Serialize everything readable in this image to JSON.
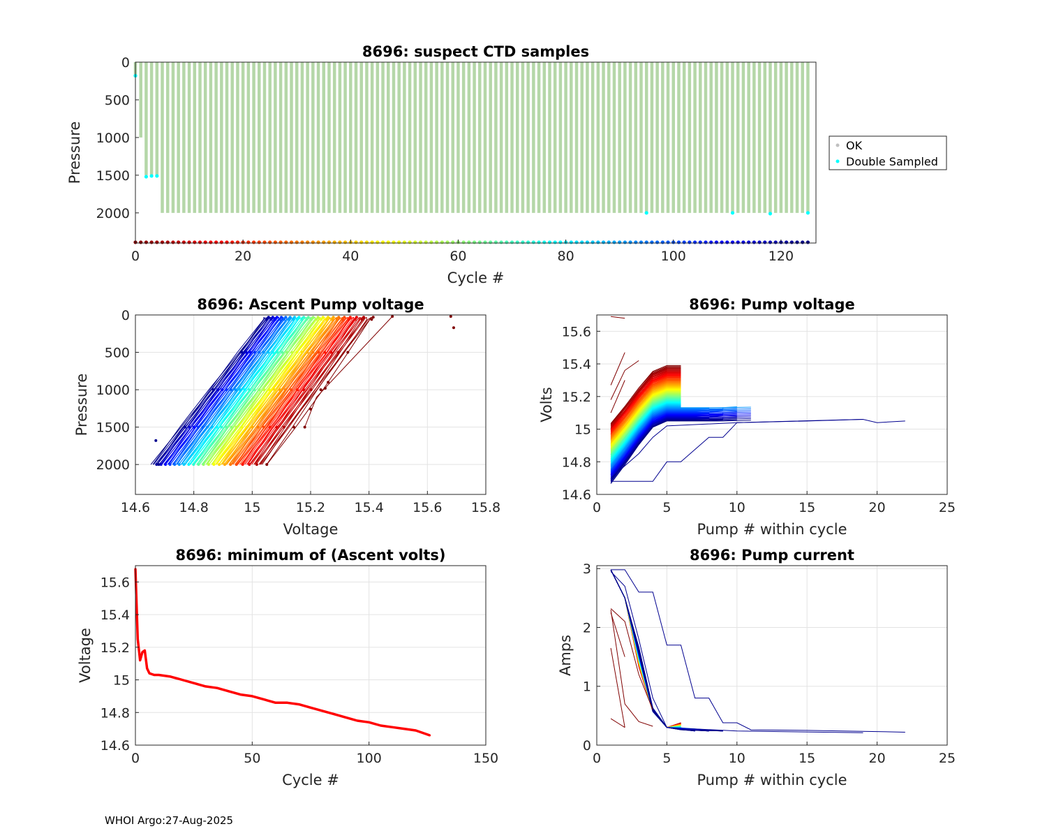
{
  "footer": "WHOI Argo:27-Aug-2025",
  "colors": {
    "ok": "#c0c0c0",
    "double": "#00ffff",
    "profile_bar": "#b5d7a8",
    "min_line": "#ff0000"
  },
  "chart_data": [
    {
      "id": "suspect",
      "type": "scatter",
      "title": "8696: suspect CTD samples",
      "xlabel": "Cycle #",
      "ylabel": "Pressure",
      "xlim": [
        0,
        126.5
      ],
      "ylim": [
        0,
        2400
      ],
      "y_reversed": true,
      "xticks": [
        0,
        20,
        40,
        60,
        80,
        100,
        120
      ],
      "yticks": [
        0,
        500,
        1000,
        1500,
        2000
      ],
      "cycles": 126,
      "max_pressure_by_cycle": {
        "0": 200,
        "1": 1000,
        "2": 1500,
        "3": 1500,
        "4": 1500,
        "default": 2000
      },
      "double_sampled": [
        [
          0,
          180
        ],
        [
          2,
          1520
        ],
        [
          3,
          1510
        ],
        [
          4,
          1510
        ],
        [
          95,
          2000
        ],
        [
          111,
          2000
        ],
        [
          118,
          2010
        ],
        [
          125,
          2000
        ]
      ],
      "cycle_marker_pressure": 2390,
      "legend": [
        "OK",
        "Double Sampled"
      ]
    },
    {
      "id": "ascent",
      "type": "line",
      "title": "8696: Ascent Pump voltage",
      "xlabel": "Voltage",
      "ylabel": "Pressure",
      "xlim": [
        14.6,
        15.8
      ],
      "ylim": [
        0,
        2400
      ],
      "y_reversed": true,
      "xticks": [
        14.6,
        14.8,
        15,
        15.2,
        15.4,
        15.6,
        15.8
      ],
      "yticks": [
        0,
        500,
        1000,
        1500,
        2000
      ],
      "voltage_at_2000dbar_first": 15.05,
      "voltage_at_2000dbar_last": 14.66,
      "voltage_at_surface_first": 15.42,
      "voltage_at_surface_last": 15.05
    },
    {
      "id": "pumpv",
      "type": "line",
      "title": "8696: Pump voltage",
      "xlabel": "Pump # within cycle",
      "ylabel": "Volts",
      "xlim": [
        0,
        25
      ],
      "ylim": [
        14.6,
        15.7
      ],
      "xticks": [
        0,
        5,
        10,
        15,
        20,
        25
      ],
      "yticks": [
        14.6,
        14.8,
        15,
        15.2,
        15.4,
        15.6
      ],
      "start_volts_first": 15.03,
      "start_volts_last": 14.67,
      "end_volts_first": 15.39,
      "end_volts_last": 15.05
    },
    {
      "id": "minv",
      "type": "line",
      "title": "8696: minimum of (Ascent volts)",
      "xlabel": "Cycle #",
      "ylabel": "Voltage",
      "xlim": [
        0,
        150
      ],
      "ylim": [
        14.6,
        15.7
      ],
      "xticks": [
        0,
        50,
        100,
        150
      ],
      "yticks": [
        14.6,
        14.8,
        15,
        15.2,
        15.4,
        15.6
      ],
      "x": [
        0,
        1,
        2,
        3,
        4,
        5,
        6,
        8,
        10,
        15,
        20,
        25,
        30,
        35,
        40,
        45,
        50,
        55,
        60,
        65,
        70,
        75,
        80,
        85,
        90,
        95,
        100,
        105,
        110,
        115,
        120,
        124,
        126
      ],
      "y": [
        15.68,
        15.25,
        15.12,
        15.17,
        15.18,
        15.07,
        15.04,
        15.03,
        15.03,
        15.02,
        15.0,
        14.98,
        14.96,
        14.95,
        14.93,
        14.91,
        14.9,
        14.88,
        14.86,
        14.86,
        14.85,
        14.83,
        14.81,
        14.79,
        14.77,
        14.75,
        14.74,
        14.72,
        14.71,
        14.7,
        14.69,
        14.67,
        14.66
      ]
    },
    {
      "id": "pumpc",
      "type": "line",
      "title": "8696: Pump current",
      "xlabel": "Pump # within cycle",
      "ylabel": "Amps",
      "xlim": [
        0,
        25
      ],
      "ylim": [
        0,
        3.05
      ],
      "xticks": [
        0,
        5,
        10,
        15,
        20,
        25
      ],
      "yticks": [
        0,
        1,
        2,
        3
      ],
      "typical_curve": {
        "x": [
          1,
          2,
          3,
          4,
          5,
          6
        ],
        "y": [
          2.98,
          2.5,
          1.5,
          0.6,
          0.3,
          0.26
        ]
      }
    }
  ]
}
